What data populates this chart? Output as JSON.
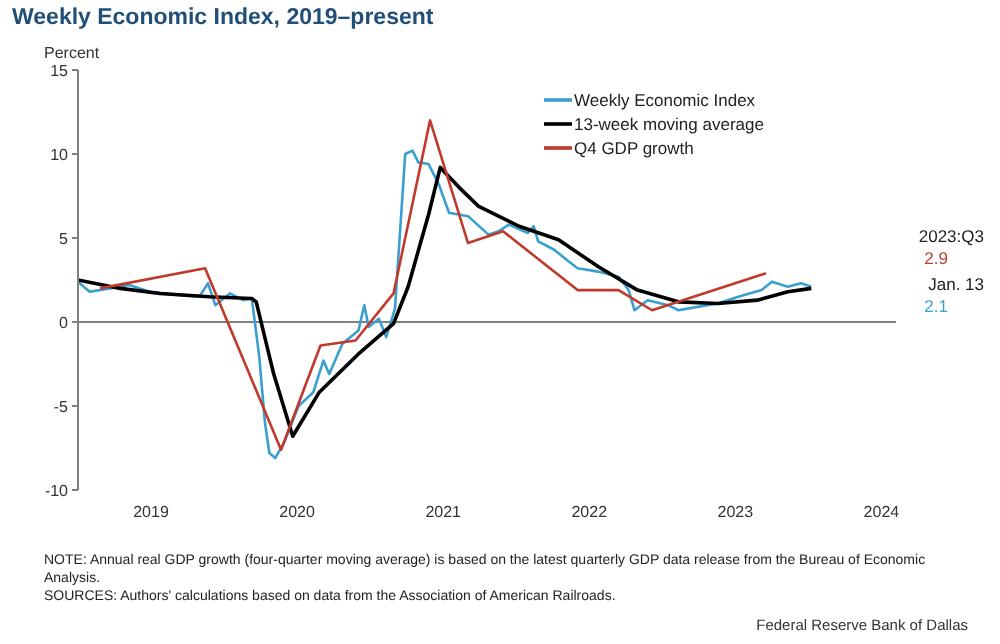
{
  "chart_data": {
    "type": "line",
    "title": "Weekly Economic Index, 2019–present",
    "ylabel": "Percent",
    "xlim": [
      2019,
      2024.6
    ],
    "xticks": [
      {
        "value": 2019.5,
        "label": "2019"
      },
      {
        "value": 2020.5,
        "label": "2020"
      },
      {
        "value": 2021.5,
        "label": "2021"
      },
      {
        "value": 2022.5,
        "label": "2022"
      },
      {
        "value": 2023.5,
        "label": "2023"
      },
      {
        "value": 2024.5,
        "label": "2024"
      }
    ],
    "ylim": [
      -10,
      15
    ],
    "yticks": [
      -10,
      -5,
      0,
      5,
      10,
      15
    ],
    "grid": false,
    "legend": "top right",
    "marker": "none",
    "line_style": "solid",
    "ref_lines": [
      {
        "axis": "y",
        "value": 0,
        "color": "#808080"
      }
    ],
    "series": [
      {
        "name": "Weekly Economic Index",
        "color": "#3a9fd0",
        "x": [
          2019.0,
          2019.08,
          2019.22,
          2019.35,
          2019.49,
          2019.7,
          2019.83,
          2019.89,
          2019.94,
          2020.04,
          2020.13,
          2020.19,
          2020.24,
          2020.28,
          2020.31,
          2020.35,
          2020.41,
          2020.51,
          2020.61,
          2020.68,
          2020.72,
          2020.81,
          2020.92,
          2020.96,
          2020.99,
          2021.06,
          2021.11,
          2021.17,
          2021.24,
          2021.29,
          2021.33,
          2021.4,
          2021.47,
          2021.54,
          2021.67,
          2021.81,
          2021.88,
          2021.95,
          2022.08,
          2022.12,
          2022.15,
          2022.26,
          2022.36,
          2022.42,
          2022.56,
          2022.7,
          2022.77,
          2022.81,
          2022.9,
          2023.04,
          2023.11,
          2023.24,
          2023.38,
          2023.52,
          2023.68,
          2023.75,
          2023.86,
          2023.95,
          2024.02
        ],
        "values": [
          2.4,
          1.8,
          2.0,
          2.2,
          1.8,
          1.6,
          1.5,
          2.3,
          1.0,
          1.7,
          1.3,
          1.4,
          -2.0,
          -6.0,
          -7.8,
          -8.1,
          -7.2,
          -5.0,
          -4.2,
          -2.3,
          -3.1,
          -1.3,
          -0.5,
          1.0,
          -0.3,
          0.2,
          -0.9,
          0.8,
          10.0,
          10.2,
          9.5,
          9.4,
          8.2,
          6.5,
          6.3,
          5.2,
          5.4,
          5.8,
          5.3,
          5.7,
          4.8,
          4.3,
          3.6,
          3.2,
          3.0,
          2.7,
          1.9,
          0.7,
          1.3,
          1.0,
          0.7,
          0.9,
          1.1,
          1.5,
          1.9,
          2.4,
          2.1,
          2.3,
          2.1
        ]
      },
      {
        "name": "13-week moving average",
        "color": "#000000",
        "x": [
          2019.0,
          2019.29,
          2019.56,
          2019.9,
          2020.19,
          2020.22,
          2020.34,
          2020.47,
          2020.65,
          2020.92,
          2021.16,
          2021.26,
          2021.4,
          2021.48,
          2021.61,
          2021.74,
          2022.02,
          2022.29,
          2022.56,
          2022.83,
          2023.11,
          2023.38,
          2023.65,
          2023.86,
          2024.02
        ],
        "values": [
          2.5,
          2.0,
          1.7,
          1.5,
          1.4,
          1.2,
          -3.1,
          -6.8,
          -4.2,
          -1.9,
          -0.1,
          2.1,
          6.4,
          9.2,
          8.0,
          6.9,
          5.7,
          4.9,
          3.3,
          1.9,
          1.2,
          1.1,
          1.3,
          1.8,
          2.0
        ]
      },
      {
        "name": "Q4 GDP growth",
        "color": "#c0392b",
        "x": [
          2019.15,
          2019.87,
          2020.39,
          2020.66,
          2020.9,
          2021.16,
          2021.41,
          2021.67,
          2021.91,
          2022.42,
          2022.7,
          2022.93,
          2023.71
        ],
        "values": [
          2.0,
          3.2,
          -7.6,
          -1.4,
          -1.1,
          1.7,
          12.0,
          4.7,
          5.4,
          1.9,
          1.9,
          0.7,
          2.9
        ]
      }
    ],
    "annotations": [
      "2023:Q3",
      "2.9",
      "Jan. 13",
      "2.1",
      "NOTE: Annual real GDP growth (four-quarter moving average) is based on the latest quarterly GDP data release from the Bureau of Economic Analysis.",
      "SOURCES: Authors' calculations based on data from the Association of American Railroads.",
      "Federal Reserve Bank of Dallas"
    ]
  }
}
